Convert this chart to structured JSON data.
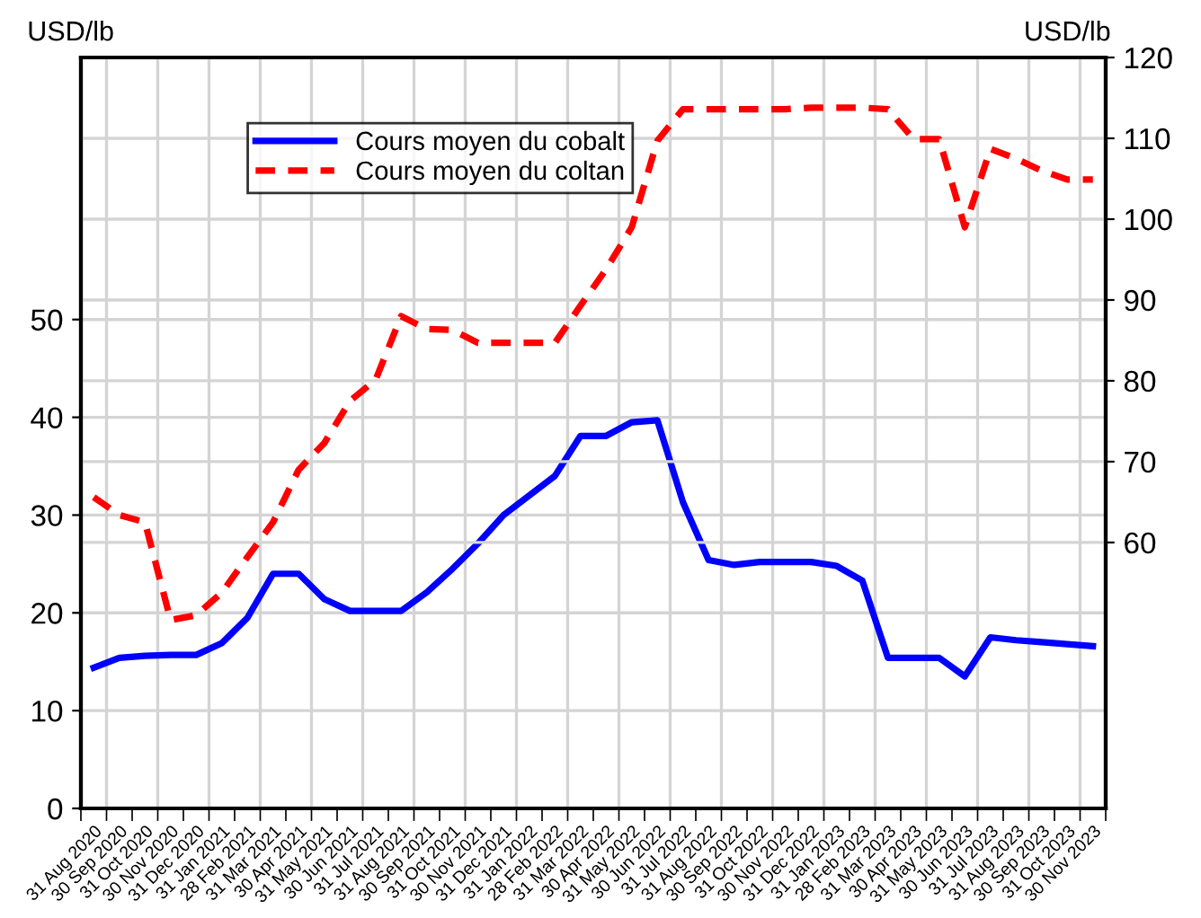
{
  "chart_data": {
    "type": "line",
    "ylabel": "USD/lb",
    "y2label": "USD/lb",
    "categories": [
      "31 Aug 2020",
      "30 Sep 2020",
      "31 Oct 2020",
      "30 Nov 2020",
      "31 Dec 2020",
      "31 Jan 2021",
      "28 Feb 2021",
      "31 Mar 2021",
      "30 Apr 2021",
      "31 May 2021",
      "30 Jun 2021",
      "31 Jul 2021",
      "31 Aug 2021",
      "30 Sep 2021",
      "31 Oct 2021",
      "30 Nov 2021",
      "31 Dec 2021",
      "31 Jan 2022",
      "28 Feb 2022",
      "31 Mar 2022",
      "30 Apr 2022",
      "31 May 2022",
      "30 Jun 2022",
      "31 Jul 2022",
      "31 Aug 2022",
      "30 Sep 2022",
      "31 Oct 2022",
      "30 Nov 2022",
      "31 Dec 2022",
      "31 Jan 2023",
      "28 Feb 2023",
      "31 Mar 2023",
      "30 Apr 2023",
      "31 May 2023",
      "30 Jun 2023",
      "31 Jul 2023",
      "31 Aug 2023",
      "30 Sep 2023",
      "31 Oct 2023",
      "30 Nov 2023"
    ],
    "series": [
      {
        "name": "Cours moyen du cobalt",
        "color": "#0000ff",
        "line_style": "solid",
        "values": [
          14.4,
          15.4,
          15.6,
          15.7,
          15.7,
          16.9,
          19.5,
          24.0,
          24.0,
          21.4,
          20.2,
          20.2,
          20.2,
          22.1,
          24.5,
          27.1,
          30.0,
          32.0,
          34.0,
          38.1,
          38.1,
          39.5,
          39.7,
          31.3,
          25.4,
          24.9,
          25.2,
          25.2,
          25.2,
          24.8,
          23.3,
          15.4,
          15.4,
          15.4,
          13.5,
          17.5,
          17.2,
          17.0,
          16.8,
          16.6
        ]
      },
      {
        "name": "Cours moyen du coltan",
        "color": "#ff0000",
        "line_style": "dashed",
        "axis": "y2",
        "values": [
          65.6,
          63.4,
          62.5,
          50.4,
          51.0,
          53.8,
          58.2,
          62.5,
          69.0,
          72.3,
          77.5,
          80.1,
          88.0,
          86.4,
          86.3,
          84.7,
          84.7,
          84.7,
          84.7,
          89.3,
          93.8,
          99.0,
          109.7,
          113.6,
          113.6,
          113.6,
          113.6,
          113.6,
          113.8,
          113.8,
          113.8,
          113.6,
          109.9,
          109.9,
          99.0,
          108.7,
          107.5,
          106.0,
          104.9,
          104.9
        ]
      }
    ],
    "ylim": [
      0,
      76.8
    ],
    "yticks": [
      0,
      10,
      20,
      30,
      40,
      50
    ],
    "y2lim": [
      27.1,
      120
    ],
    "y2ticks": [
      60,
      70,
      80,
      90,
      100,
      110,
      120
    ],
    "grid": true,
    "legend": "top left",
    "marker": "none"
  }
}
